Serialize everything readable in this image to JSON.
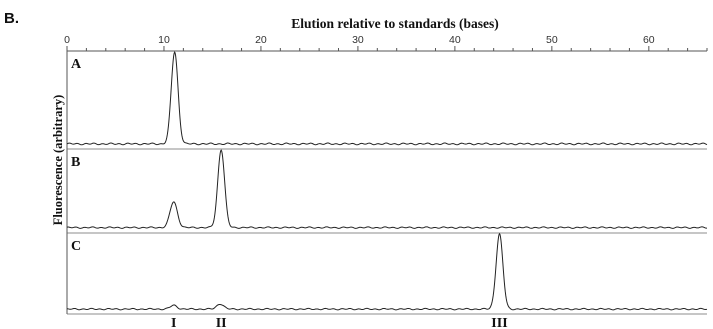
{
  "figure_label": "B.",
  "chart_data": {
    "type": "line",
    "title": "Elution relative to standards (bases)",
    "xlabel": "",
    "ylabel": "Fluorescence (arbitrary)",
    "xlim": [
      0,
      66
    ],
    "xticks": [
      0,
      10,
      20,
      30,
      40,
      50,
      60
    ],
    "grid": false,
    "panels": [
      {
        "label": "A",
        "peaks": [
          {
            "x": 11.1,
            "height": 1.0,
            "width": 0.35
          }
        ],
        "baseline": 0.02
      },
      {
        "label": "B",
        "peaks": [
          {
            "x": 11.0,
            "height": 0.33,
            "width": 0.38
          },
          {
            "x": 15.9,
            "height": 1.0,
            "width": 0.35
          }
        ],
        "baseline": 0.03
      },
      {
        "label": "C",
        "peaks": [
          {
            "x": 11.0,
            "height": 0.05,
            "width": 0.35
          },
          {
            "x": 15.8,
            "height": 0.07,
            "width": 0.35
          },
          {
            "x": 44.6,
            "height": 1.0,
            "width": 0.35
          }
        ],
        "baseline": 0.02
      }
    ],
    "peak_markers": [
      {
        "label": "I",
        "x": 11.0
      },
      {
        "label": "II",
        "x": 15.9
      },
      {
        "label": "III",
        "x": 44.6
      }
    ]
  }
}
